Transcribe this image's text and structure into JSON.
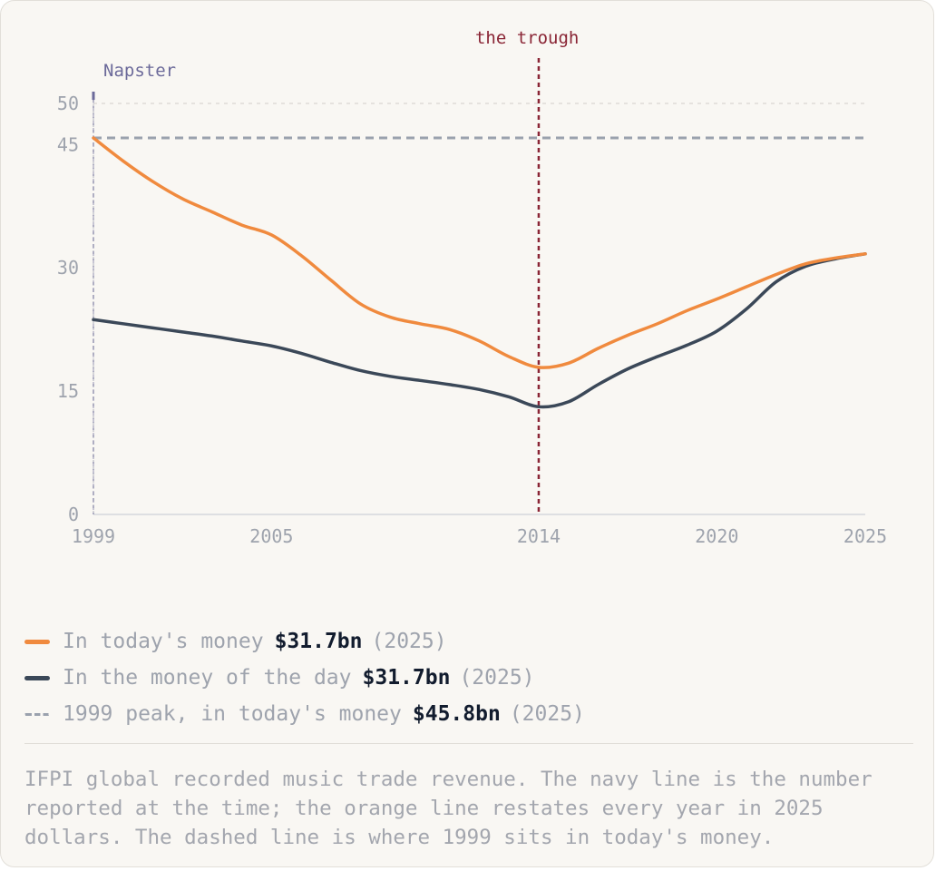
{
  "chart_data": {
    "type": "line",
    "x": [
      1999,
      2000,
      2001,
      2002,
      2003,
      2004,
      2005,
      2006,
      2007,
      2008,
      2009,
      2010,
      2011,
      2012,
      2013,
      2014,
      2015,
      2016,
      2017,
      2018,
      2019,
      2020,
      2021,
      2022,
      2023,
      2024,
      2025
    ],
    "series": [
      {
        "name": "In today's money",
        "color": "#f08a3e",
        "values": [
          45.8,
          43.0,
          40.5,
          38.4,
          36.8,
          35.2,
          34.0,
          31.5,
          28.5,
          25.6,
          24.0,
          23.2,
          22.5,
          21.1,
          19.2,
          17.9,
          18.4,
          20.2,
          21.8,
          23.2,
          24.8,
          26.2,
          27.7,
          29.2,
          30.5,
          31.2,
          31.7
        ]
      },
      {
        "name": "In the money of the day",
        "color": "#3b4858",
        "values": [
          23.7,
          23.2,
          22.7,
          22.2,
          21.7,
          21.1,
          20.5,
          19.6,
          18.5,
          17.5,
          16.8,
          16.3,
          15.8,
          15.2,
          14.3,
          13.1,
          13.7,
          15.8,
          17.7,
          19.2,
          20.6,
          22.3,
          25.0,
          28.3,
          30.2,
          31.1,
          31.7
        ]
      }
    ],
    "reference_line": {
      "name": "1999 peak, in today's money",
      "y": 45.8,
      "style": "dashed",
      "color": "#9aa1ad"
    },
    "annotations": [
      {
        "label": "Napster",
        "x": 1999,
        "color": "#6c6a9a"
      },
      {
        "label": "the trough",
        "x": 2014,
        "color": "#8a2535"
      }
    ],
    "x_ticks": [
      1999,
      2005,
      2014,
      2020,
      2025
    ],
    "y_ticks": [
      0,
      15,
      30,
      45,
      50
    ],
    "xlim": [
      1999,
      2025
    ],
    "ylim": [
      0,
      50
    ],
    "grid": "horizontal at 50 only",
    "title": "",
    "xlabel": "",
    "ylabel": ""
  },
  "legend": [
    {
      "key": "orange",
      "label": "In today's money",
      "value": "$31.7bn",
      "year": "(2025)"
    },
    {
      "key": "navy",
      "label": "In the money of the day",
      "value": "$31.7bn",
      "year": "(2025)"
    },
    {
      "key": "dash",
      "label": "1999 peak, in today's money",
      "value": "$45.8bn",
      "year": "(2025)"
    }
  ],
  "caption": "IFPI global recorded music trade revenue. The navy line is the number reported at the time; the orange line restates every year in 2025 dollars. The dashed line is where 1999 sits in today's money.",
  "colors": {
    "orange": "#f08a3e",
    "navy": "#3b4858",
    "dash": "#9aa1ad",
    "napster": "#6c6a9a",
    "trough": "#8a2535"
  }
}
